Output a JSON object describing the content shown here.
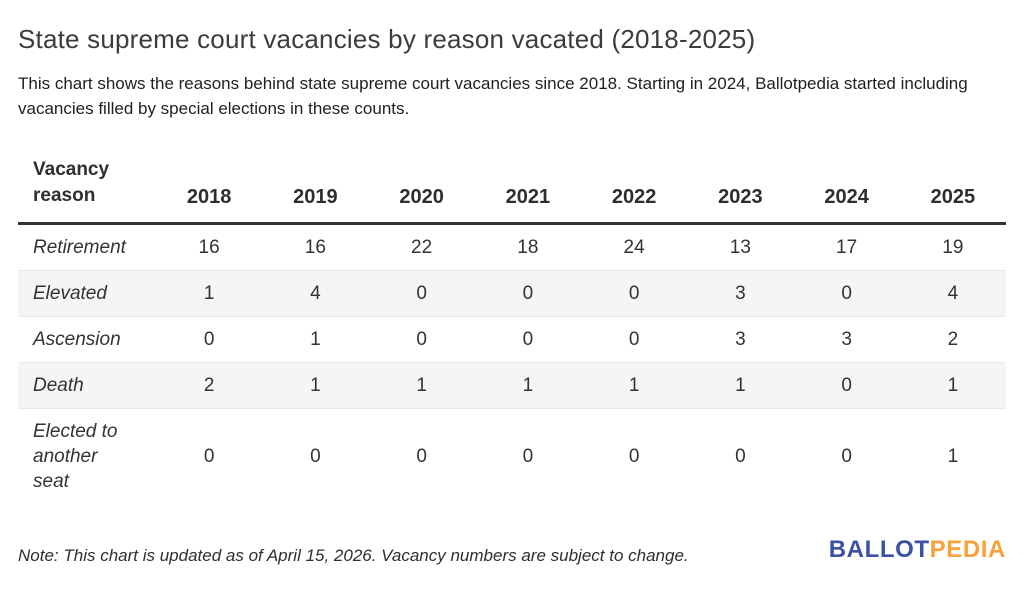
{
  "title": "State supreme court vacancies by reason vacated (2018-2025)",
  "subtitle": "This chart shows the reasons behind state supreme court vacancies since 2018. Starting in 2024, Ballotpedia started including vacancies filled by special elections in these counts.",
  "note": "Note: This chart is updated as of April 15, 2026. Vacancy numbers are subject to change.",
  "logo": {
    "part1": "BALLOT",
    "part2": "PEDIA",
    "blue": "#3b51a3",
    "orange": "#f9a13b"
  },
  "colors": {
    "shaded_row": "#f5f5f5",
    "header_rule": "#333333",
    "text": "#333333",
    "title_text": "#3c3c3c"
  },
  "chart_data": {
    "type": "table",
    "title": "State supreme court vacancies by reason vacated (2018-2025)",
    "columns": [
      "Vacancy reason",
      "2018",
      "2019",
      "2020",
      "2021",
      "2022",
      "2023",
      "2024",
      "2025"
    ],
    "rows": [
      {
        "label": "Retirement",
        "values": [
          16,
          16,
          22,
          18,
          24,
          13,
          17,
          19
        ]
      },
      {
        "label": "Elevated",
        "values": [
          1,
          4,
          0,
          0,
          0,
          3,
          0,
          4
        ]
      },
      {
        "label": "Ascension",
        "values": [
          0,
          1,
          0,
          0,
          0,
          3,
          3,
          2
        ]
      },
      {
        "label": "Death",
        "values": [
          2,
          1,
          1,
          1,
          1,
          1,
          0,
          1
        ]
      },
      {
        "label": "Elected to another seat",
        "values": [
          0,
          0,
          0,
          0,
          0,
          0,
          0,
          1
        ]
      }
    ]
  }
}
